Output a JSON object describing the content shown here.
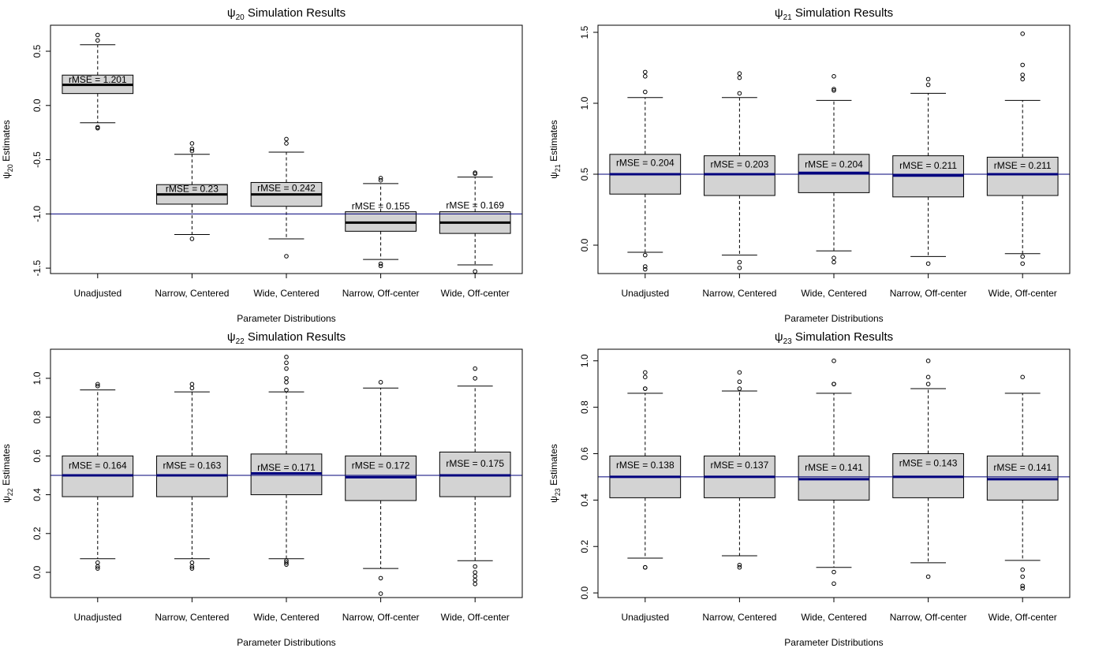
{
  "chart_data": [
    {
      "type": "boxplot",
      "title_sym": "ψ",
      "title_sub": "20",
      "title_rest": " Simulation Results",
      "ylabel_sym": "ψ",
      "ylabel_sub": "20",
      "ylabel_rest": " Estimates",
      "xlabel": "Parameter Distributions",
      "categories": [
        "Unadjusted",
        "Narrow, Centered",
        "Wide, Centered",
        "Narrow, Off-center",
        "Wide, Off-center"
      ],
      "ylim": [
        -1.55,
        0.74
      ],
      "yticks": [
        -1.5,
        -1.0,
        -0.5,
        0.0,
        0.5
      ],
      "ytick_labels": [
        "-1.5",
        "-1.0",
        "-0.5",
        "0.0",
        "0.5"
      ],
      "reference_line": -1.0,
      "boxes": [
        {
          "whisker_low": -0.16,
          "q1": 0.11,
          "median": 0.19,
          "q3": 0.28,
          "whisker_high": 0.56,
          "outliers": [
            -0.2,
            -0.21,
            0.6,
            0.65
          ]
        },
        {
          "whisker_low": -1.19,
          "q1": -0.91,
          "median": -0.82,
          "q3": -0.73,
          "whisker_high": -0.45,
          "outliers": [
            -1.23,
            -0.42,
            -0.4,
            -0.35
          ]
        },
        {
          "whisker_low": -1.23,
          "q1": -0.93,
          "median": -0.82,
          "q3": -0.71,
          "whisker_high": -0.43,
          "outliers": [
            -1.39,
            -0.35,
            -0.31
          ]
        },
        {
          "whisker_low": -1.42,
          "q1": -1.16,
          "median": -1.08,
          "q3": -0.98,
          "whisker_high": -0.72,
          "outliers": [
            -1.48,
            -1.46,
            -0.69,
            -0.67
          ]
        },
        {
          "whisker_low": -1.47,
          "q1": -1.18,
          "median": -1.08,
          "q3": -0.98,
          "whisker_high": -0.66,
          "outliers": [
            -1.53,
            -0.63,
            -0.62
          ]
        }
      ],
      "annotations": [
        "rMSE = 1.201",
        "rMSE = 0.23",
        "rMSE = 0.242",
        "rMSE = 0.155",
        "rMSE = 0.169"
      ],
      "annotation_y": [
        0.24,
        -0.77,
        -0.76,
        -0.93,
        -0.92
      ]
    },
    {
      "type": "boxplot",
      "title_sym": "ψ",
      "title_sub": "21",
      "title_rest": " Simulation Results",
      "ylabel_sym": "ψ",
      "ylabel_sub": "21",
      "ylabel_rest": " Estimates",
      "xlabel": "Parameter Distributions",
      "categories": [
        "Unadjusted",
        "Narrow, Centered",
        "Wide, Centered",
        "Narrow, Off-center",
        "Wide, Off-center"
      ],
      "ylim": [
        -0.2,
        1.55
      ],
      "yticks": [
        0.0,
        0.5,
        1.0,
        1.5
      ],
      "ytick_labels": [
        "0.0",
        "0.5",
        "1.0",
        "1.5"
      ],
      "reference_line": 0.5,
      "boxes": [
        {
          "whisker_low": -0.05,
          "q1": 0.36,
          "median": 0.5,
          "q3": 0.64,
          "whisker_high": 1.04,
          "outliers": [
            -0.07,
            -0.15,
            -0.17,
            1.08,
            1.19,
            1.22
          ]
        },
        {
          "whisker_low": -0.07,
          "q1": 0.35,
          "median": 0.5,
          "q3": 0.63,
          "whisker_high": 1.04,
          "outliers": [
            -0.12,
            -0.16,
            1.07,
            1.18,
            1.21
          ]
        },
        {
          "whisker_low": -0.04,
          "q1": 0.37,
          "median": 0.51,
          "q3": 0.64,
          "whisker_high": 1.02,
          "outliers": [
            -0.09,
            -0.12,
            1.09,
            1.1,
            1.19
          ]
        },
        {
          "whisker_low": -0.08,
          "q1": 0.34,
          "median": 0.49,
          "q3": 0.63,
          "whisker_high": 1.07,
          "outliers": [
            -0.13,
            1.13,
            1.17
          ]
        },
        {
          "whisker_low": -0.06,
          "q1": 0.35,
          "median": 0.5,
          "q3": 0.62,
          "whisker_high": 1.02,
          "outliers": [
            -0.08,
            -0.13,
            1.17,
            1.2,
            1.27,
            1.49
          ]
        }
      ],
      "annotations": [
        "rMSE = 0.204",
        "rMSE = 0.203",
        "rMSE = 0.204",
        "rMSE = 0.211",
        "rMSE = 0.211"
      ],
      "annotation_y": [
        0.58,
        0.57,
        0.57,
        0.56,
        0.56
      ]
    },
    {
      "type": "boxplot",
      "title_sym": "ψ",
      "title_sub": "22",
      "title_rest": " Simulation Results",
      "ylabel_sym": "ψ",
      "ylabel_sub": "22",
      "ylabel_rest": " Estimates",
      "xlabel": "Parameter Distributions",
      "categories": [
        "Unadjusted",
        "Narrow, Centered",
        "Wide, Centered",
        "Narrow, Off-center",
        "Wide, Off-center"
      ],
      "ylim": [
        -0.13,
        1.15
      ],
      "yticks": [
        0.0,
        0.2,
        0.4,
        0.6,
        0.8,
        1.0
      ],
      "ytick_labels": [
        "0.0",
        "0.2",
        "0.4",
        "0.6",
        "0.8",
        "1.0"
      ],
      "reference_line": 0.5,
      "boxes": [
        {
          "whisker_low": 0.07,
          "q1": 0.39,
          "median": 0.5,
          "q3": 0.6,
          "whisker_high": 0.94,
          "outliers": [
            0.02,
            0.03,
            0.05,
            0.96,
            0.97
          ]
        },
        {
          "whisker_low": 0.07,
          "q1": 0.39,
          "median": 0.5,
          "q3": 0.6,
          "whisker_high": 0.93,
          "outliers": [
            0.02,
            0.03,
            0.05,
            0.95,
            0.97
          ]
        },
        {
          "whisker_low": 0.07,
          "q1": 0.4,
          "median": 0.51,
          "q3": 0.61,
          "whisker_high": 0.93,
          "outliers": [
            0.04,
            0.05,
            0.06,
            0.94,
            0.98,
            1.0,
            1.05,
            1.08,
            1.11
          ]
        },
        {
          "whisker_low": 0.02,
          "q1": 0.37,
          "median": 0.49,
          "q3": 0.6,
          "whisker_high": 0.95,
          "outliers": [
            -0.03,
            -0.11,
            0.98
          ]
        },
        {
          "whisker_low": 0.06,
          "q1": 0.39,
          "median": 0.5,
          "q3": 0.62,
          "whisker_high": 0.96,
          "outliers": [
            0.03,
            0.0,
            -0.02,
            -0.04,
            -0.06,
            1.0,
            1.05
          ]
        }
      ],
      "annotations": [
        "rMSE = 0.164",
        "rMSE = 0.163",
        "rMSE = 0.171",
        "rMSE = 0.172",
        "rMSE = 0.175"
      ],
      "annotation_y": [
        0.55,
        0.55,
        0.54,
        0.55,
        0.56
      ]
    },
    {
      "type": "boxplot",
      "title_sym": "ψ",
      "title_sub": "23",
      "title_rest": " Simulation Results",
      "ylabel_sym": "ψ",
      "ylabel_sub": "23",
      "ylabel_rest": " Estimates",
      "xlabel": "Parameter Distributions",
      "categories": [
        "Unadjusted",
        "Narrow, Centered",
        "Wide, Centered",
        "Narrow, Off-center",
        "Wide, Off-center"
      ],
      "ylim": [
        -0.02,
        1.05
      ],
      "yticks": [
        0.0,
        0.2,
        0.4,
        0.6,
        0.8,
        1.0
      ],
      "ytick_labels": [
        "0.0",
        "0.2",
        "0.4",
        "0.6",
        "0.8",
        "1.0"
      ],
      "reference_line": 0.5,
      "boxes": [
        {
          "whisker_low": 0.15,
          "q1": 0.41,
          "median": 0.5,
          "q3": 0.59,
          "whisker_high": 0.86,
          "outliers": [
            0.11,
            0.11,
            0.88,
            0.88,
            0.93,
            0.95
          ]
        },
        {
          "whisker_low": 0.16,
          "q1": 0.41,
          "median": 0.5,
          "q3": 0.59,
          "whisker_high": 0.87,
          "outliers": [
            0.11,
            0.12,
            0.88,
            0.91,
            0.95
          ]
        },
        {
          "whisker_low": 0.11,
          "q1": 0.4,
          "median": 0.49,
          "q3": 0.59,
          "whisker_high": 0.86,
          "outliers": [
            0.04,
            0.09,
            0.9,
            0.9,
            1.0
          ]
        },
        {
          "whisker_low": 0.13,
          "q1": 0.41,
          "median": 0.5,
          "q3": 0.6,
          "whisker_high": 0.88,
          "outliers": [
            0.07,
            0.9,
            0.93,
            1.0
          ]
        },
        {
          "whisker_low": 0.14,
          "q1": 0.4,
          "median": 0.49,
          "q3": 0.59,
          "whisker_high": 0.86,
          "outliers": [
            0.02,
            0.03,
            0.07,
            0.1,
            0.93
          ]
        }
      ],
      "annotations": [
        "rMSE = 0.138",
        "rMSE = 0.137",
        "rMSE = 0.141",
        "rMSE = 0.143",
        "rMSE = 0.141"
      ],
      "annotation_y": [
        0.55,
        0.55,
        0.54,
        0.56,
        0.54
      ]
    }
  ],
  "colors": {
    "box_fill": "#d3d3d3",
    "reference_line": "#00007a",
    "median": "#000000",
    "median_on_ref": "#000080"
  }
}
